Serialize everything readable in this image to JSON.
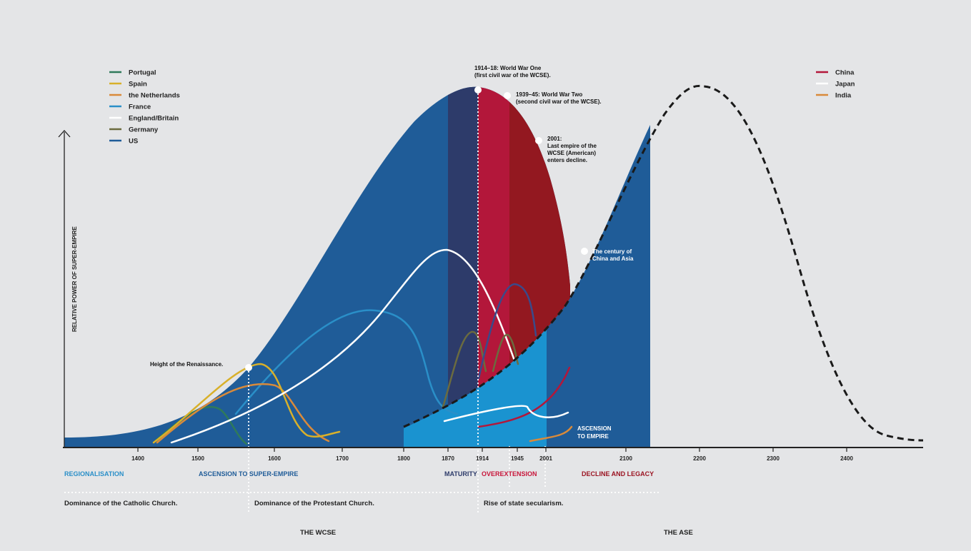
{
  "chart_data": {
    "type": "area",
    "ylabel": "RELATIVE POWER OF SUPER-EMPIRE",
    "x_ticks": [
      "1400",
      "1500",
      "1600",
      "1700",
      "1800",
      "1870",
      "1914",
      "1945",
      "2001",
      "2100",
      "2200",
      "2300",
      "2400"
    ],
    "legend_left": [
      {
        "name": "Portugal",
        "color": "#2f7a5a"
      },
      {
        "name": "Spain",
        "color": "#d8b02a"
      },
      {
        "name": "the Netherlands",
        "color": "#d98a3a"
      },
      {
        "name": "France",
        "color": "#2a8fc8"
      },
      {
        "name": "England/Britain",
        "color": "#ffffff"
      },
      {
        "name": "Germany",
        "color": "#6b6b3f"
      },
      {
        "name": "US",
        "color": "#1f5c98"
      }
    ],
    "legend_right": [
      {
        "name": "China",
        "color": "#b3173a"
      },
      {
        "name": "Japan",
        "color": "#ffffff"
      },
      {
        "name": "India",
        "color": "#d98a3a"
      }
    ],
    "annotations": {
      "wwi": [
        "1914–18: World War One",
        "(first civil war of the WCSE)."
      ],
      "wwii": [
        "1939–45: World War Two",
        "(second civil war of the WCSE)."
      ],
      "decline": [
        "2001:",
        "Last empire of the",
        "WCSE (American)",
        "enters decline."
      ],
      "asia": [
        "The century of",
        "China and Asia"
      ],
      "renaissance": "Height of the Renaissance.",
      "ascension": [
        "ASCENSION",
        "TO EMPIRE"
      ]
    },
    "phases": [
      {
        "label": "REGIONALISATION",
        "color": "#2a8fc8"
      },
      {
        "label": "ASCENSION TO SUPER-EMPIRE",
        "color": "#1f5c98"
      },
      {
        "label": "MATURITY",
        "color": "#2d3b6a"
      },
      {
        "label": "OVEREXTENSION",
        "color": "#c8153a"
      },
      {
        "label": "DECLINE AND LEGACY",
        "color": "#9b1422"
      }
    ],
    "churches": [
      "Dominance of the Catholic Church.",
      "Dominance of the Protestant Church.",
      "Rise of state secularism."
    ],
    "eras": [
      "THE WCSE",
      "THE ASE"
    ]
  }
}
